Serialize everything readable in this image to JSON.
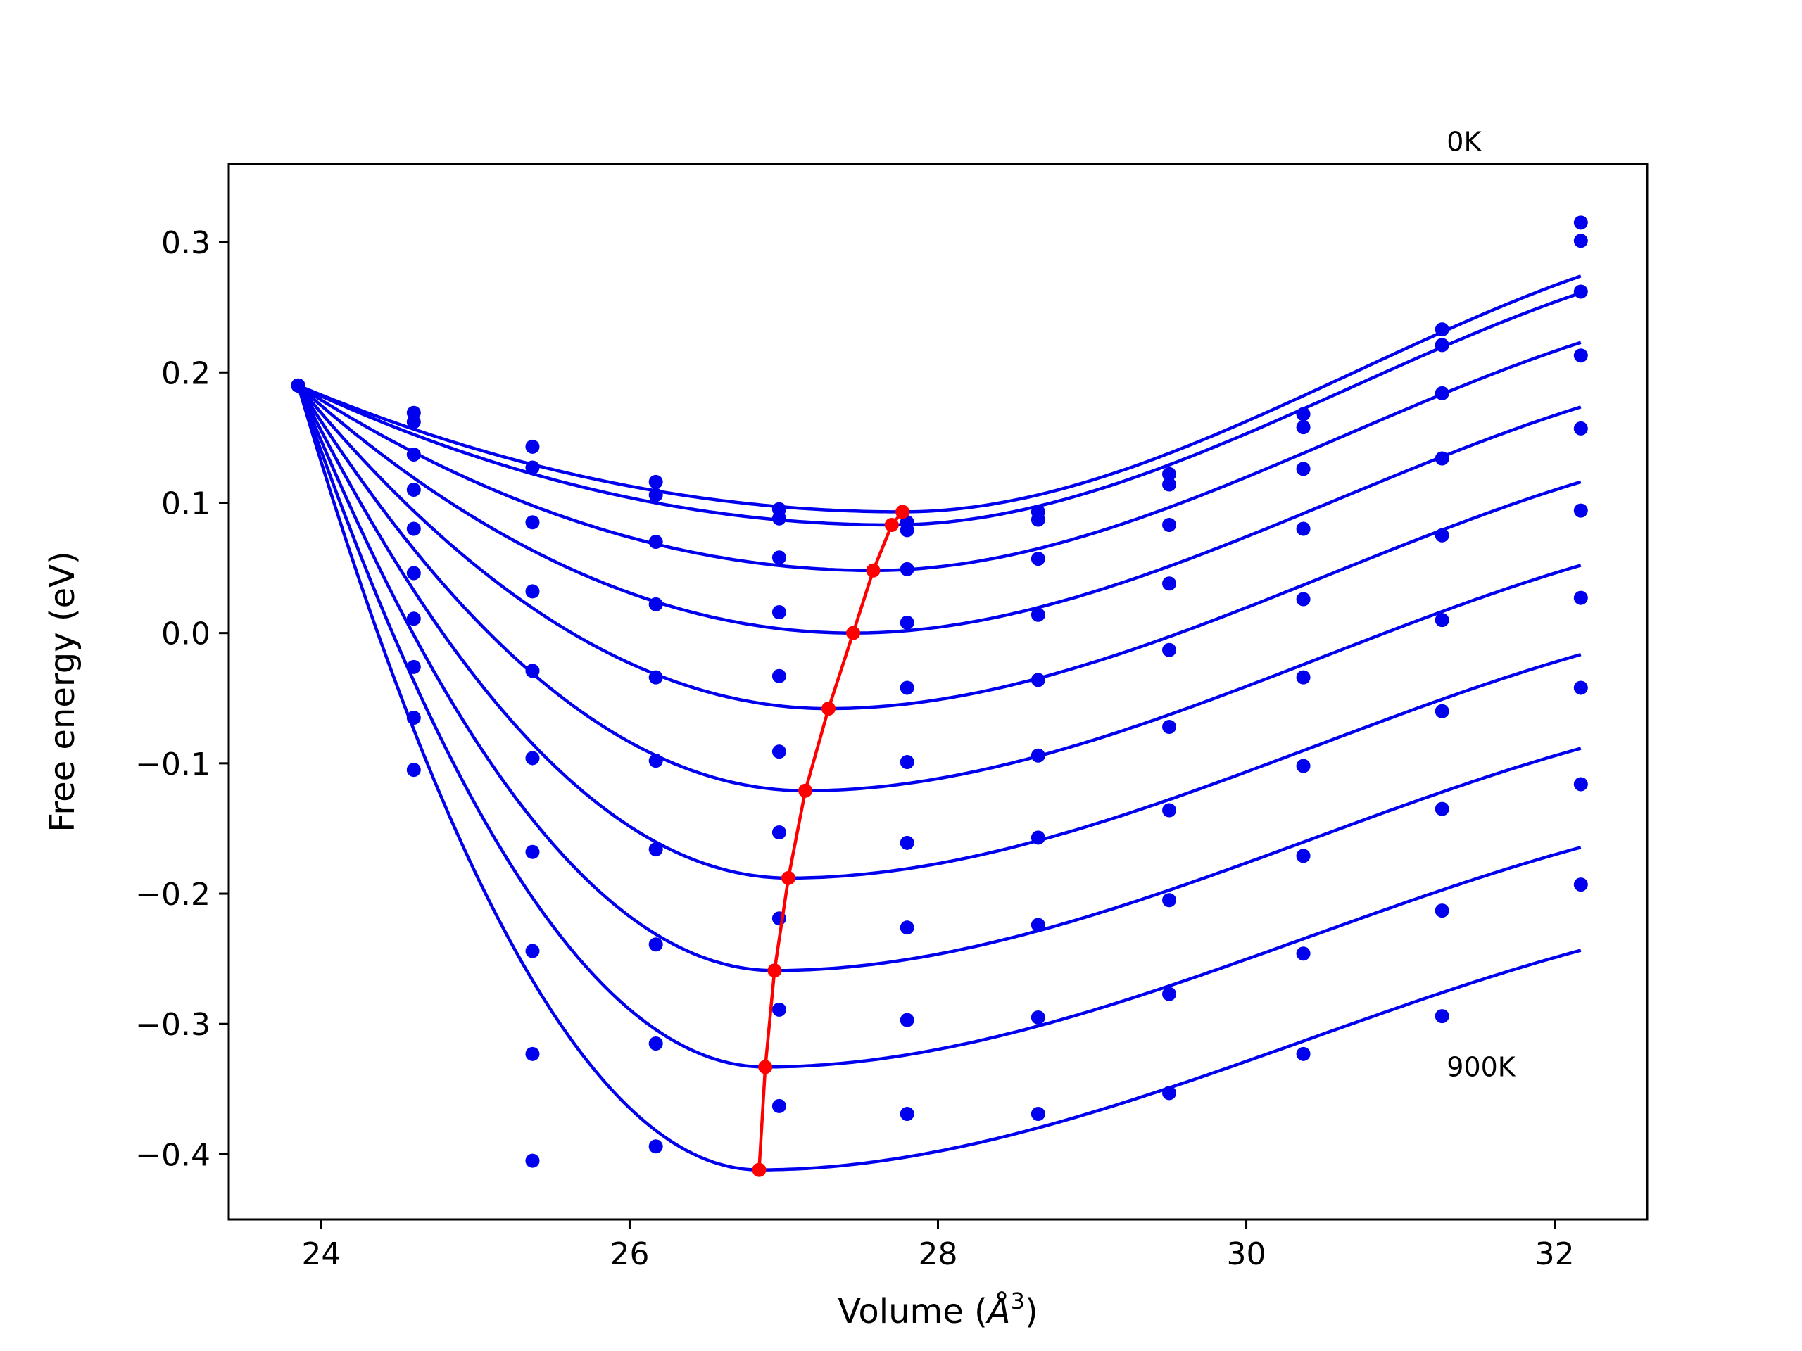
{
  "chart_data": {
    "type": "line",
    "title": "",
    "xlabel_main": "Volume (",
    "xlabel_sym": "Å",
    "xlabel_exp": "3",
    "xlabel_close": ")",
    "ylabel": "Free energy (eV)",
    "xlim": [
      23.4,
      32.6
    ],
    "ylim": [
      -0.45,
      0.36
    ],
    "xticks": [
      24,
      26,
      28,
      30,
      32
    ],
    "yticks": [
      0.3,
      0.2,
      0.1,
      0.0,
      -0.1,
      -0.2,
      -0.3,
      -0.4
    ],
    "xtick_labels": [
      "24",
      "26",
      "28",
      "30",
      "32"
    ],
    "ytick_labels": [
      "0.3",
      "0.2",
      "0.1",
      "0.0",
      "−0.1",
      "−0.2",
      "−0.3",
      "−0.4"
    ],
    "grid": false,
    "annotations": [
      {
        "text": "0K",
        "x": 31.3,
        "y": 0.37
      },
      {
        "text": "900K",
        "x": 31.3,
        "y": -0.34
      }
    ],
    "colors": {
      "curves": "#0000ee",
      "minima": "#ff0000"
    },
    "volumes": [
      23.85,
      24.6,
      25.37,
      26.17,
      26.97,
      27.8,
      28.65,
      29.5,
      30.37,
      31.27,
      32.17
    ],
    "points": [
      [
        0.19,
        0.169,
        0.143,
        0.116,
        0.095,
        0.085,
        0.093,
        0.122,
        0.168,
        0.233,
        0.315
      ],
      [
        0.19,
        0.162,
        0.127,
        0.106,
        0.088,
        0.079,
        0.087,
        0.114,
        0.158,
        0.221,
        0.301
      ],
      [
        0.19,
        0.137,
        0.085,
        0.07,
        0.058,
        0.049,
        0.057,
        0.083,
        0.126,
        0.184,
        0.262
      ],
      [
        0.19,
        0.11,
        0.032,
        0.022,
        0.016,
        0.008,
        0.014,
        0.038,
        0.08,
        0.134,
        0.213
      ],
      [
        0.19,
        0.08,
        -0.029,
        -0.034,
        -0.033,
        -0.042,
        -0.036,
        -0.013,
        0.026,
        0.075,
        0.157
      ],
      [
        0.19,
        0.046,
        -0.096,
        -0.098,
        -0.091,
        -0.099,
        -0.094,
        -0.072,
        -0.034,
        0.01,
        0.094
      ],
      [
        0.19,
        0.011,
        -0.168,
        -0.166,
        -0.153,
        -0.161,
        -0.157,
        -0.136,
        -0.102,
        -0.06,
        0.027
      ],
      [
        0.19,
        -0.026,
        -0.244,
        -0.239,
        -0.219,
        -0.226,
        -0.224,
        -0.205,
        -0.171,
        -0.135,
        -0.042
      ],
      [
        0.19,
        -0.065,
        -0.323,
        -0.315,
        -0.289,
        -0.297,
        -0.295,
        -0.277,
        -0.246,
        -0.213,
        -0.116
      ],
      [
        0.19,
        -0.105,
        -0.405,
        -0.394,
        -0.363,
        -0.369,
        -0.369,
        -0.353,
        -0.323,
        -0.294,
        -0.193
      ]
    ],
    "minima": {
      "x": [
        27.77,
        27.7,
        27.58,
        27.45,
        27.29,
        27.14,
        27.03,
        26.94,
        26.88,
        26.84
      ],
      "y": [
        0.093,
        0.083,
        0.048,
        0.0,
        -0.058,
        -0.121,
        -0.188,
        -0.259,
        -0.333,
        -0.412
      ]
    }
  }
}
